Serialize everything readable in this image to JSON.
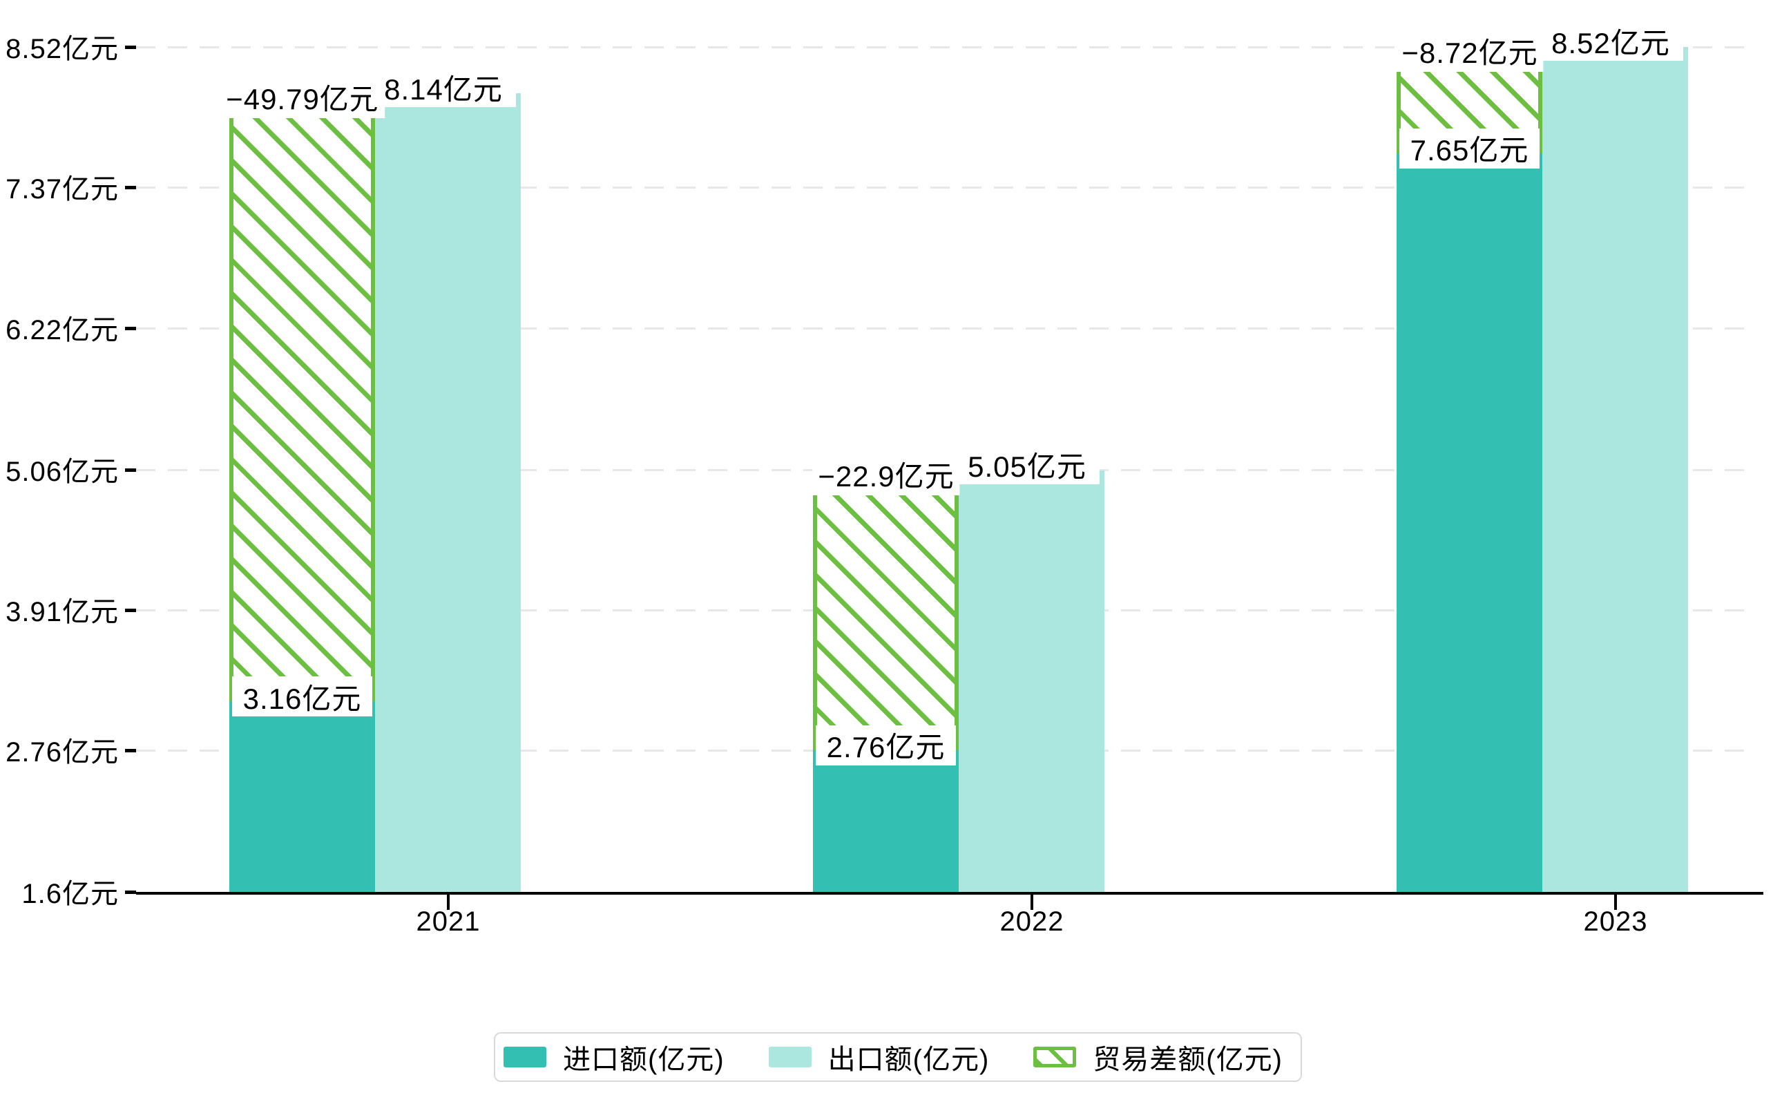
{
  "chart_data": {
    "type": "bar",
    "categories": [
      "2021",
      "2022",
      "2023"
    ],
    "series": [
      {
        "name": "进口额(亿元)",
        "values": [
          3.16,
          2.76,
          7.65
        ],
        "color": "#33bfb2",
        "style": "solid"
      },
      {
        "name": "出口额(亿元)",
        "values": [
          8.14,
          5.05,
          8.52
        ],
        "color": "#abe7df",
        "style": "solid"
      },
      {
        "name": "贸易差额(亿元)",
        "values": [
          -49.79,
          -22.9,
          -8.72
        ],
        "color": "#6cbf40",
        "style": "hatch"
      }
    ],
    "data_labels": {
      "import": [
        "3.16亿元",
        "2.76亿元",
        "7.65亿元"
      ],
      "export": [
        "8.14亿元",
        "5.05亿元",
        "8.52亿元"
      ],
      "balance": [
        "−49.79亿元",
        "−22.9亿元",
        "−8.72亿元"
      ]
    },
    "y_axis": {
      "min": 1.6,
      "max": 8.52,
      "ticks": [
        {
          "value": 8.52,
          "label": "8.52亿元"
        },
        {
          "value": 7.37,
          "label": "7.37亿元"
        },
        {
          "value": 6.22,
          "label": "6.22亿元"
        },
        {
          "value": 5.06,
          "label": "5.06亿元"
        },
        {
          "value": 3.91,
          "label": "3.91亿元"
        },
        {
          "value": 2.76,
          "label": "2.76亿元"
        },
        {
          "value": 1.6,
          "label": "1.6亿元"
        }
      ]
    },
    "x_axis": {
      "labels": [
        "2021",
        "2022",
        "2023"
      ]
    },
    "grid": true,
    "legend_position": "bottom"
  },
  "legend": {
    "items": [
      {
        "label": "进口额(亿元)",
        "swatch": "import-solid"
      },
      {
        "label": "出口额(亿元)",
        "swatch": "export-solid"
      },
      {
        "label": "贸易差额(亿元)",
        "swatch": "hatch-outline"
      }
    ]
  },
  "colors": {
    "import_bar": "#33bfb2",
    "export_bar": "#abe7df",
    "hatch_green": "#6cbf40",
    "gridline": "#e7e7e7",
    "axis": "#000000",
    "label_bg": "#ffffff",
    "text": "#000000",
    "legend_border": "#d9d9d9"
  }
}
